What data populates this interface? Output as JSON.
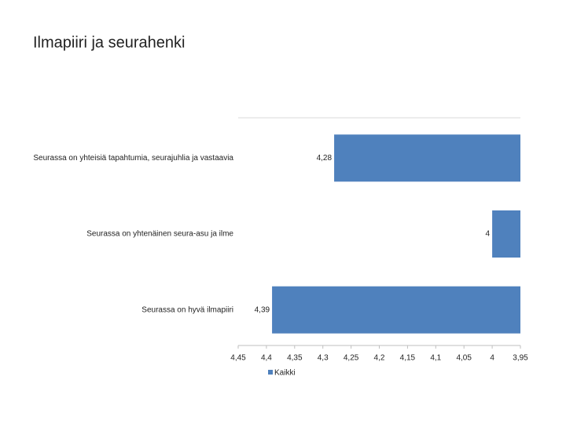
{
  "chart_data": {
    "type": "bar",
    "orientation": "horizontal",
    "title": "Ilmapiiri ja seurahenki",
    "categories": [
      "Seurassa on yhteisiä tapahtumia, seurajuhlia ja vastaavia",
      "Seurassa on yhtenäinen seura-asu ja ilme",
      "Seurassa on hyvä ilmapiiri"
    ],
    "series": [
      {
        "name": "Kaikki",
        "color": "#4f81bd",
        "values": [
          4.28,
          4,
          4.39
        ],
        "value_labels": [
          "4,28",
          "4",
          "4,39"
        ]
      }
    ],
    "xlim": [
      4.45,
      3.95
    ],
    "xticks": [
      {
        "value": 4.45,
        "label": "4,45"
      },
      {
        "value": 4.4,
        "label": "4,4"
      },
      {
        "value": 4.35,
        "label": "4,35"
      },
      {
        "value": 4.3,
        "label": "4,3"
      },
      {
        "value": 4.25,
        "label": "4,25"
      },
      {
        "value": 4.2,
        "label": "4,2"
      },
      {
        "value": 4.15,
        "label": "4,15"
      },
      {
        "value": 4.1,
        "label": "4,1"
      },
      {
        "value": 4.05,
        "label": "4,05"
      },
      4,
      {
        "value": 3.95,
        "label": "3,95"
      }
    ],
    "legend": "bottom"
  }
}
